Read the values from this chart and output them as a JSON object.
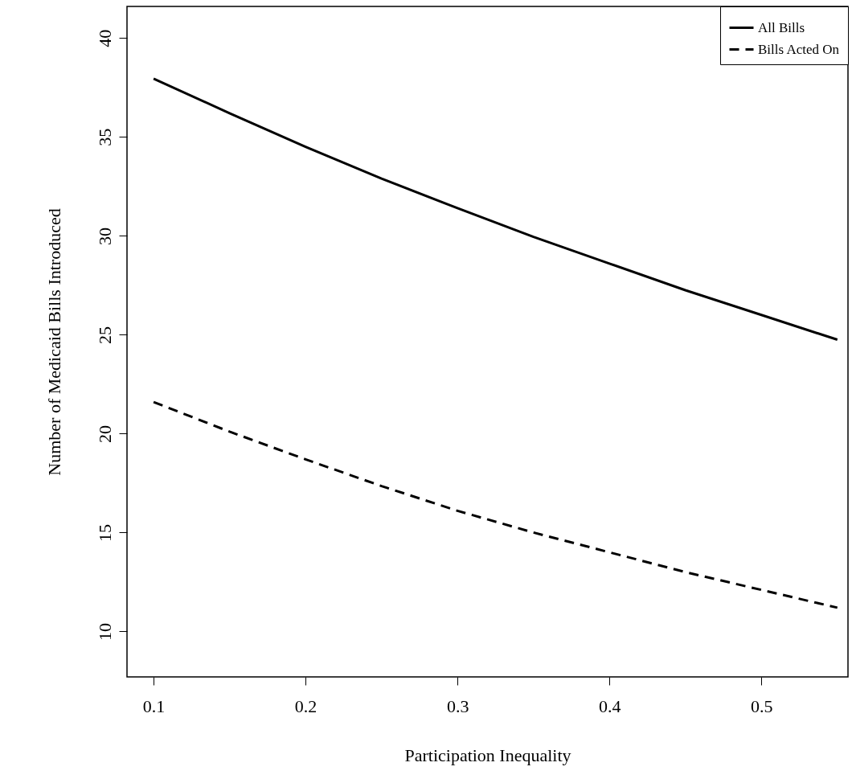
{
  "chart_data": {
    "type": "line",
    "xlabel": "Participation Inequality",
    "ylabel": "Number of Medicaid Bills Introduced",
    "x": [
      0.1,
      0.15,
      0.2,
      0.25,
      0.3,
      0.35,
      0.4,
      0.45,
      0.5,
      0.55
    ],
    "series": [
      {
        "name": "All Bills",
        "color": "#000000",
        "line_style": "solid",
        "values": [
          37.95,
          36.2,
          34.5,
          32.9,
          31.4,
          29.95,
          28.6,
          27.25,
          26.0,
          24.75
        ]
      },
      {
        "name": "Bills Acted On",
        "color": "#000000",
        "line_style": "dashed",
        "values": [
          21.6,
          20.1,
          18.7,
          17.35,
          16.1,
          15.0,
          14.0,
          13.0,
          12.1,
          11.2
        ]
      }
    ],
    "xlim": [
      0.0825,
      0.557
    ],
    "ylim": [
      7.7,
      41.6
    ],
    "xticks": [
      0.1,
      0.2,
      0.3,
      0.4,
      0.5
    ],
    "yticks": [
      10,
      15,
      20,
      25,
      30,
      35,
      40
    ],
    "grid": false,
    "legend": "top right",
    "marker": "none"
  }
}
